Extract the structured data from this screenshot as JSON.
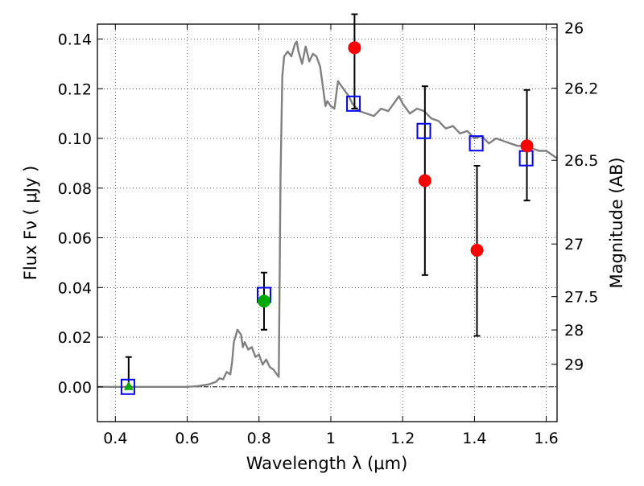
{
  "chart_data": {
    "type": "scatter",
    "xlabel": "Wavelength  λ (μm)",
    "ylabel": "Flux  Fν  ( μJy )",
    "ylabel_right": "Magnitude (AB)",
    "xlim": [
      0.35,
      1.63
    ],
    "ylim": [
      -0.014,
      0.146
    ],
    "grid": true,
    "x_ticks": [
      {
        "value": 0.4,
        "label": "0.4"
      },
      {
        "value": 0.6,
        "label": "0.6"
      },
      {
        "value": 0.8,
        "label": "0.8"
      },
      {
        "value": 1.0,
        "label": "1"
      },
      {
        "value": 1.2,
        "label": "1.2"
      },
      {
        "value": 1.4,
        "label": "1.4"
      },
      {
        "value": 1.6,
        "label": "1.6"
      }
    ],
    "y_ticks": [
      {
        "value": 0.0,
        "label": "0.00"
      },
      {
        "value": 0.02,
        "label": "0.02"
      },
      {
        "value": 0.04,
        "label": "0.04"
      },
      {
        "value": 0.06,
        "label": "0.06"
      },
      {
        "value": 0.08,
        "label": "0.08"
      },
      {
        "value": 0.1,
        "label": "0.10"
      },
      {
        "value": 0.12,
        "label": "0.12"
      },
      {
        "value": 0.14,
        "label": "0.14"
      }
    ],
    "right_ticks": [
      {
        "label": "26",
        "flux": 0.1445
      },
      {
        "label": "26.2",
        "flux": 0.1202
      },
      {
        "label": "26.5",
        "flux": 0.0912
      },
      {
        "label": "27",
        "flux": 0.0575
      },
      {
        "label": "27.5",
        "flux": 0.0363
      },
      {
        "label": "28",
        "flux": 0.0229
      },
      {
        "label": "29",
        "flux": 0.0091
      }
    ],
    "reference_line": 0.0,
    "series": [
      {
        "kind": "line",
        "color": "#808080",
        "points": [
          [
            0.35,
            0.0
          ],
          [
            0.6,
            0.0
          ],
          [
            0.63,
            0.0003
          ],
          [
            0.66,
            0.001
          ],
          [
            0.68,
            0.002
          ],
          [
            0.69,
            0.0035
          ],
          [
            0.7,
            0.003
          ],
          [
            0.71,
            0.006
          ],
          [
            0.72,
            0.005
          ],
          [
            0.725,
            0.01
          ],
          [
            0.73,
            0.018
          ],
          [
            0.74,
            0.023
          ],
          [
            0.75,
            0.021
          ],
          [
            0.755,
            0.016
          ],
          [
            0.76,
            0.018
          ],
          [
            0.77,
            0.015
          ],
          [
            0.78,
            0.016
          ],
          [
            0.79,
            0.012
          ],
          [
            0.8,
            0.013
          ],
          [
            0.81,
            0.009
          ],
          [
            0.82,
            0.011
          ],
          [
            0.83,
            0.008
          ],
          [
            0.84,
            0.007
          ],
          [
            0.85,
            0.005
          ],
          [
            0.855,
            0.004
          ],
          [
            0.86,
            0.085
          ],
          [
            0.865,
            0.125
          ],
          [
            0.87,
            0.133
          ],
          [
            0.88,
            0.135
          ],
          [
            0.89,
            0.133
          ],
          [
            0.9,
            0.138
          ],
          [
            0.905,
            0.139
          ],
          [
            0.91,
            0.135
          ],
          [
            0.92,
            0.13
          ],
          [
            0.93,
            0.137
          ],
          [
            0.94,
            0.131
          ],
          [
            0.95,
            0.134
          ],
          [
            0.96,
            0.133
          ],
          [
            0.97,
            0.129
          ],
          [
            0.975,
            0.124
          ],
          [
            0.985,
            0.113
          ],
          [
            0.99,
            0.115
          ],
          [
            1.0,
            0.113
          ],
          [
            1.01,
            0.112
          ],
          [
            1.02,
            0.123
          ],
          [
            1.03,
            0.121
          ],
          [
            1.04,
            0.119
          ],
          [
            1.05,
            0.117
          ],
          [
            1.06,
            0.114
          ],
          [
            1.08,
            0.111
          ],
          [
            1.1,
            0.11
          ],
          [
            1.12,
            0.109
          ],
          [
            1.14,
            0.112
          ],
          [
            1.16,
            0.111
          ],
          [
            1.18,
            0.115
          ],
          [
            1.19,
            0.117
          ],
          [
            1.2,
            0.114
          ],
          [
            1.22,
            0.11
          ],
          [
            1.24,
            0.112
          ],
          [
            1.26,
            0.111
          ],
          [
            1.28,
            0.108
          ],
          [
            1.3,
            0.107
          ],
          [
            1.32,
            0.104
          ],
          [
            1.34,
            0.105
          ],
          [
            1.36,
            0.102
          ],
          [
            1.38,
            0.103
          ],
          [
            1.4,
            0.1
          ],
          [
            1.42,
            0.101
          ],
          [
            1.44,
            0.098
          ],
          [
            1.46,
            0.1
          ],
          [
            1.48,
            0.099
          ],
          [
            1.5,
            0.098
          ],
          [
            1.52,
            0.097
          ],
          [
            1.54,
            0.097
          ],
          [
            1.56,
            0.096
          ],
          [
            1.58,
            0.095
          ],
          [
            1.6,
            0.095
          ],
          [
            1.62,
            0.093
          ],
          [
            1.63,
            0.092
          ]
        ]
      },
      {
        "kind": "marker",
        "marker": "square",
        "color": "#0000ff",
        "points": [
          [
            0.435,
            0.0
          ],
          [
            0.814,
            0.037
          ],
          [
            1.063,
            0.114
          ],
          [
            1.259,
            0.103
          ],
          [
            1.405,
            0.098
          ],
          [
            1.544,
            0.092
          ]
        ]
      },
      {
        "kind": "marker",
        "marker": "circle",
        "color": "#ff0000",
        "points": [
          [
            1.066,
            0.1365
          ],
          [
            1.262,
            0.083
          ],
          [
            1.407,
            0.055
          ],
          [
            1.546,
            0.097
          ]
        ],
        "error": [
          [
            0.15,
            0.112
          ],
          [
            0.121,
            0.045
          ],
          [
            0.089,
            0.0205
          ],
          [
            0.1195,
            0.075
          ]
        ]
      },
      {
        "kind": "marker",
        "marker": "circle",
        "color": "#00aa00",
        "points": [
          [
            0.814,
            0.0345
          ]
        ],
        "error": [
          [
            0.046,
            0.023
          ]
        ]
      },
      {
        "kind": "marker",
        "marker": "triangle",
        "color": "#00aa00",
        "points": [
          [
            0.437,
            0.0
          ]
        ],
        "error": [
          [
            0.012,
            0.0
          ]
        ]
      }
    ]
  }
}
